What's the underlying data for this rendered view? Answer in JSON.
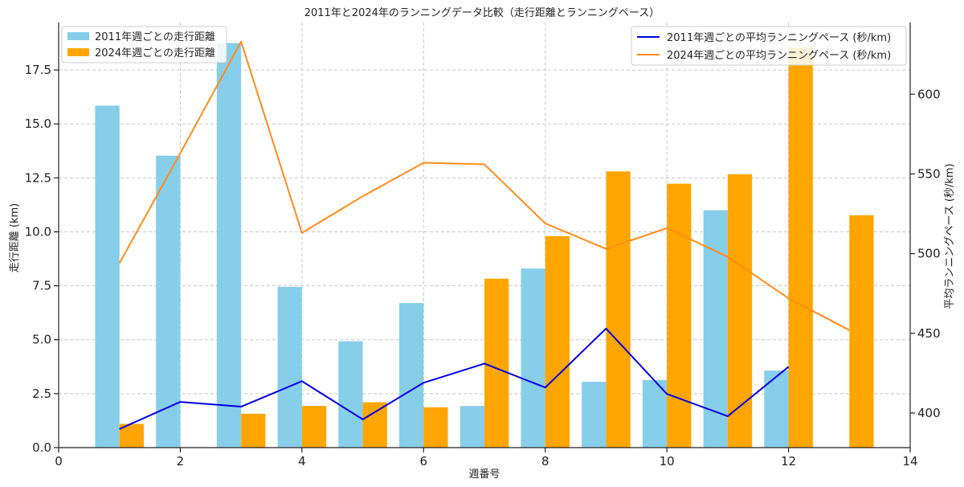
{
  "chart_data": {
    "type": "bar",
    "title": "2011年と2024年のランニングデータ比較（走行距離とランニングペース）",
    "xlabel": "週番号",
    "ylabel": "走行距離 (km)",
    "y2label": "平均ランニングペース (秒/km)",
    "xlim": [
      0,
      14
    ],
    "ylim": [
      0,
      19.7
    ],
    "y2lim": [
      378.3,
      645
    ],
    "xticks": [
      0,
      2,
      4,
      6,
      8,
      10,
      12,
      14
    ],
    "yticks": [
      0.0,
      2.5,
      5.0,
      7.5,
      10.0,
      12.5,
      15.0,
      17.5
    ],
    "ytick_labels": [
      "0.0",
      "2.5",
      "5.0",
      "7.5",
      "10.0",
      "12.5",
      "15.0",
      "17.5"
    ],
    "y2ticks": [
      400,
      450,
      500,
      550,
      600
    ],
    "grid": true,
    "legend_left": "top-left",
    "legend_right": "top-right",
    "bar_series": [
      {
        "name": "2011年週ごとの走行距離",
        "color": "#87CEEB",
        "x": [
          1,
          2,
          3,
          4,
          5,
          6,
          7,
          8,
          9,
          10,
          11,
          12
        ],
        "values": [
          15.85,
          13.53,
          18.75,
          7.45,
          4.93,
          6.7,
          1.93,
          8.3,
          3.05,
          3.13,
          11.0,
          3.57
        ]
      },
      {
        "name": "2024年週ごとの走行距離",
        "color": "#FFA500",
        "x": [
          1,
          2,
          3,
          4,
          5,
          6,
          7,
          8,
          9,
          10,
          11,
          12,
          13
        ],
        "values": [
          1.1,
          0,
          1.57,
          1.93,
          2.1,
          1.87,
          7.83,
          9.8,
          12.8,
          12.23,
          12.67,
          18.55,
          10.77
        ]
      }
    ],
    "line_series": [
      {
        "name": "2011年週ごとの平均ランニングペース (秒/km)",
        "color": "#0000E0",
        "x": [
          1,
          2,
          3,
          4,
          5,
          6,
          7,
          8,
          9,
          10,
          11,
          12
        ],
        "values": [
          390,
          407,
          404,
          420,
          396,
          419,
          431,
          416,
          453,
          412,
          398,
          429
        ]
      },
      {
        "name": "2024年週ごとの平均ランニングペース (秒/km)",
        "color": "#FF8C1A",
        "x": [
          1,
          2,
          3,
          4,
          5,
          6,
          7,
          8,
          9,
          10,
          11,
          12,
          13
        ],
        "values": [
          494,
          563,
          633,
          513,
          536,
          557,
          556,
          519,
          503,
          516,
          498,
          472,
          452
        ]
      }
    ]
  }
}
